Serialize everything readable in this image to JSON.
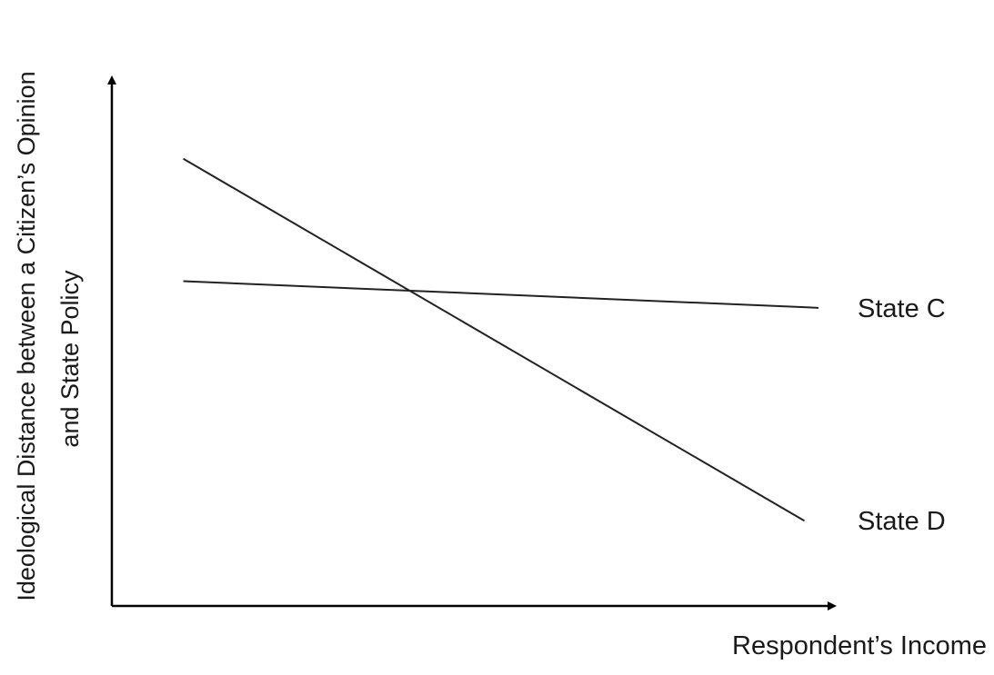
{
  "chart_data": {
    "type": "line",
    "title": "",
    "xlabel": "Respondent’s Income",
    "ylabel_lines": [
      "Ideological Distance between a Citizen’s Opinion",
      "and State Policy"
    ],
    "xlim": [
      0,
      100
    ],
    "ylim": [
      0,
      100
    ],
    "x_ticks": false,
    "y_ticks": false,
    "grid": false,
    "legend": "inline labels at line ends",
    "series": [
      {
        "name": "State C",
        "x": [
          10,
          100
        ],
        "y": [
          61,
          56
        ]
      },
      {
        "name": "State D",
        "x": [
          10,
          98
        ],
        "y": [
          84,
          16
        ]
      }
    ]
  }
}
